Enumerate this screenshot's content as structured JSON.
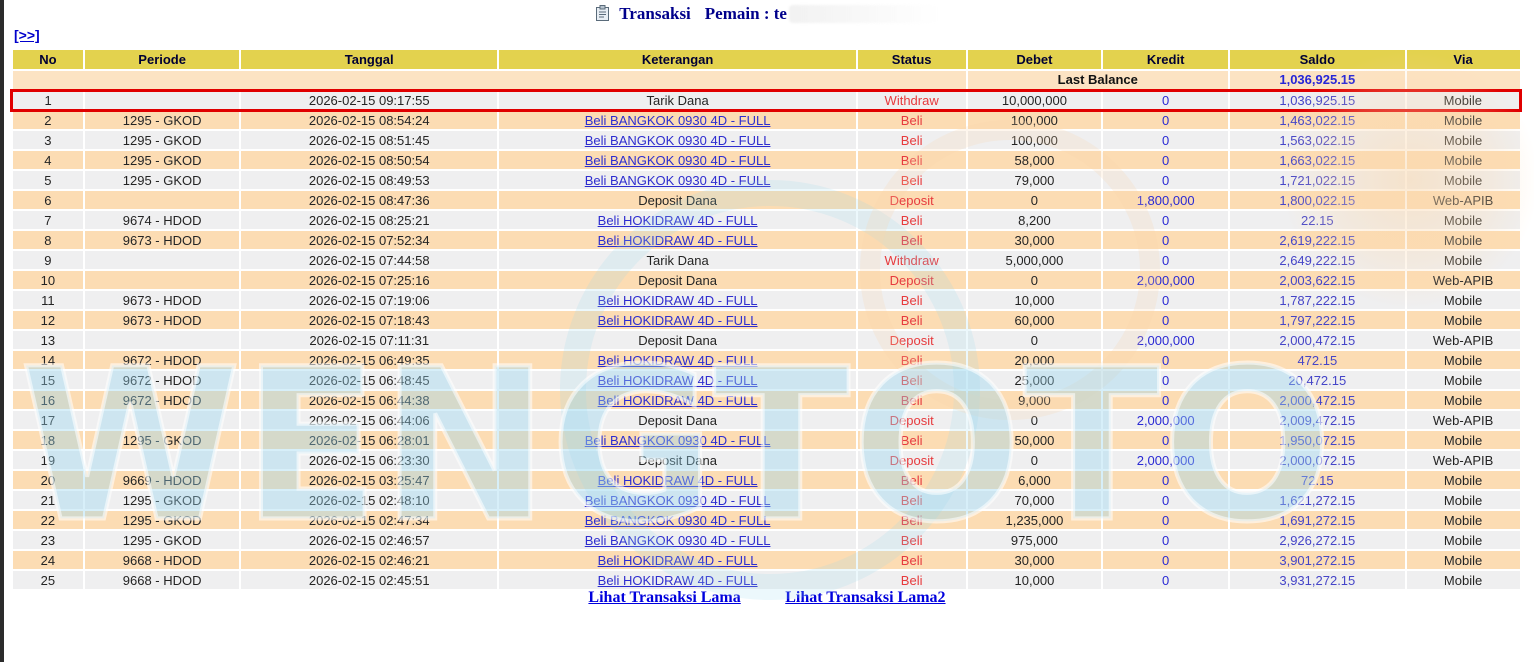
{
  "page": {
    "title_label": "Transaksi",
    "player_label": "Pemain : te",
    "more_link": "[>>]",
    "watermark_text": "WENGTOTO",
    "footer": {
      "link1": "Lihat Transaksi Lama",
      "link2": "Lihat Transaksi Lama2"
    }
  },
  "colors": {
    "header_bg": "#e3d24e",
    "header_text": "#000033",
    "row_gray": "#efeff0",
    "row_peach": "#fcdcb3",
    "last_balance_bg": "#fce3c3",
    "highlight_border": "#e00000",
    "status_red": "#e73a3d",
    "kredit_blue": "#2a2ad4",
    "saldo_blue": "#4545c8",
    "link_blue": "#2d2dd0",
    "title_navy": "#00008b",
    "footer_link_blue": "#0000dd",
    "watermark_blue": "#96d6ee",
    "watermark_peach": "#fad8ae"
  },
  "table": {
    "headers": [
      "No",
      "Periode",
      "Tanggal",
      "Keterangan",
      "Status",
      "Debet",
      "Kredit",
      "Saldo",
      "Via"
    ],
    "last_balance_label": "Last Balance",
    "last_balance_value": "1,036,925.15",
    "rows": [
      {
        "no": "1",
        "periode": "",
        "tanggal": "2026-02-15 09:17:55",
        "keterangan": "Tarik Dana",
        "link": false,
        "status": "Withdraw",
        "debet": "10,000,000",
        "kredit": "0",
        "saldo": "1,036,925.15",
        "via": "Mobile",
        "highlight": true
      },
      {
        "no": "2",
        "periode": "1295 - GKOD",
        "tanggal": "2026-02-15 08:54:24",
        "keterangan": "Beli BANGKOK 0930 4D - FULL",
        "link": true,
        "status": "Beli",
        "debet": "100,000",
        "kredit": "0",
        "saldo": "1,463,022.15",
        "via": "Mobile"
      },
      {
        "no": "3",
        "periode": "1295 - GKOD",
        "tanggal": "2026-02-15 08:51:45",
        "keterangan": "Beli BANGKOK 0930 4D - FULL",
        "link": true,
        "status": "Beli",
        "debet": "100,000",
        "kredit": "0",
        "saldo": "1,563,022.15",
        "via": "Mobile"
      },
      {
        "no": "4",
        "periode": "1295 - GKOD",
        "tanggal": "2026-02-15 08:50:54",
        "keterangan": "Beli BANGKOK 0930 4D - FULL",
        "link": true,
        "status": "Beli",
        "debet": "58,000",
        "kredit": "0",
        "saldo": "1,663,022.15",
        "via": "Mobile"
      },
      {
        "no": "5",
        "periode": "1295 - GKOD",
        "tanggal": "2026-02-15 08:49:53",
        "keterangan": "Beli BANGKOK 0930 4D - FULL",
        "link": true,
        "status": "Beli",
        "debet": "79,000",
        "kredit": "0",
        "saldo": "1,721,022.15",
        "via": "Mobile"
      },
      {
        "no": "6",
        "periode": "",
        "tanggal": "2026-02-15 08:47:36",
        "keterangan": "Deposit Dana",
        "link": false,
        "status": "Deposit",
        "debet": "0",
        "kredit": "1,800,000",
        "saldo": "1,800,022.15",
        "via": "Web-APIB"
      },
      {
        "no": "7",
        "periode": "9674 - HDOD",
        "tanggal": "2026-02-15 08:25:21",
        "keterangan": "Beli HOKIDRAW 4D - FULL",
        "link": true,
        "status": "Beli",
        "debet": "8,200",
        "kredit": "0",
        "saldo": "22.15",
        "via": "Mobile"
      },
      {
        "no": "8",
        "periode": "9673 - HDOD",
        "tanggal": "2026-02-15 07:52:34",
        "keterangan": "Beli HOKIDRAW 4D - FULL",
        "link": true,
        "status": "Beli",
        "debet": "30,000",
        "kredit": "0",
        "saldo": "2,619,222.15",
        "via": "Mobile"
      },
      {
        "no": "9",
        "periode": "",
        "tanggal": "2026-02-15 07:44:58",
        "keterangan": "Tarik Dana",
        "link": false,
        "status": "Withdraw",
        "debet": "5,000,000",
        "kredit": "0",
        "saldo": "2,649,222.15",
        "via": "Mobile"
      },
      {
        "no": "10",
        "periode": "",
        "tanggal": "2026-02-15 07:25:16",
        "keterangan": "Deposit Dana",
        "link": false,
        "status": "Deposit",
        "debet": "0",
        "kredit": "2,000,000",
        "saldo": "2,003,622.15",
        "via": "Web-APIB"
      },
      {
        "no": "11",
        "periode": "9673 - HDOD",
        "tanggal": "2026-02-15 07:19:06",
        "keterangan": "Beli HOKIDRAW 4D - FULL",
        "link": true,
        "status": "Beli",
        "debet": "10,000",
        "kredit": "0",
        "saldo": "1,787,222.15",
        "via": "Mobile"
      },
      {
        "no": "12",
        "periode": "9673 - HDOD",
        "tanggal": "2026-02-15 07:18:43",
        "keterangan": "Beli HOKIDRAW 4D - FULL",
        "link": true,
        "status": "Beli",
        "debet": "60,000",
        "kredit": "0",
        "saldo": "1,797,222.15",
        "via": "Mobile"
      },
      {
        "no": "13",
        "periode": "",
        "tanggal": "2026-02-15 07:11:31",
        "keterangan": "Deposit Dana",
        "link": false,
        "status": "Deposit",
        "debet": "0",
        "kredit": "2,000,000",
        "saldo": "2,000,472.15",
        "via": "Web-APIB"
      },
      {
        "no": "14",
        "periode": "9672 - HDOD",
        "tanggal": "2026-02-15 06:49:35",
        "keterangan": "Beli HOKIDRAW 4D - FULL",
        "link": true,
        "status": "Beli",
        "debet": "20,000",
        "kredit": "0",
        "saldo": "472.15",
        "via": "Mobile"
      },
      {
        "no": "15",
        "periode": "9672 - HDOD",
        "tanggal": "2026-02-15 06:48:45",
        "keterangan": "Beli HOKIDRAW 4D - FULL",
        "link": true,
        "status": "Beli",
        "debet": "25,000",
        "kredit": "0",
        "saldo": "20,472.15",
        "via": "Mobile"
      },
      {
        "no": "16",
        "periode": "9672 - HDOD",
        "tanggal": "2026-02-15 06:44:38",
        "keterangan": "Beli HOKIDRAW 4D - FULL",
        "link": true,
        "status": "Beli",
        "debet": "9,000",
        "kredit": "0",
        "saldo": "2,000,472.15",
        "via": "Mobile"
      },
      {
        "no": "17",
        "periode": "",
        "tanggal": "2026-02-15 06:44:06",
        "keterangan": "Deposit Dana",
        "link": false,
        "status": "Deposit",
        "debet": "0",
        "kredit": "2,000,000",
        "saldo": "2,009,472.15",
        "via": "Web-APIB"
      },
      {
        "no": "18",
        "periode": "1295 - GKOD",
        "tanggal": "2026-02-15 06:28:01",
        "keterangan": "Beli BANGKOK 0930 4D - FULL",
        "link": true,
        "status": "Beli",
        "debet": "50,000",
        "kredit": "0",
        "saldo": "1,950,072.15",
        "via": "Mobile"
      },
      {
        "no": "19",
        "periode": "",
        "tanggal": "2026-02-15 06:23:30",
        "keterangan": "Deposit Dana",
        "link": false,
        "status": "Deposit",
        "debet": "0",
        "kredit": "2,000,000",
        "saldo": "2,000,072.15",
        "via": "Web-APIB"
      },
      {
        "no": "20",
        "periode": "9669 - HDOD",
        "tanggal": "2026-02-15 03:25:47",
        "keterangan": "Beli HOKIDRAW 4D - FULL",
        "link": true,
        "status": "Beli",
        "debet": "6,000",
        "kredit": "0",
        "saldo": "72.15",
        "via": "Mobile"
      },
      {
        "no": "21",
        "periode": "1295 - GKOD",
        "tanggal": "2026-02-15 02:48:10",
        "keterangan": "Beli BANGKOK 0930 4D - FULL",
        "link": true,
        "status": "Beli",
        "debet": "70,000",
        "kredit": "0",
        "saldo": "1,621,272.15",
        "via": "Mobile"
      },
      {
        "no": "22",
        "periode": "1295 - GKOD",
        "tanggal": "2026-02-15 02:47:34",
        "keterangan": "Beli BANGKOK 0930 4D - FULL",
        "link": true,
        "status": "Beli",
        "debet": "1,235,000",
        "kredit": "0",
        "saldo": "1,691,272.15",
        "via": "Mobile"
      },
      {
        "no": "23",
        "periode": "1295 - GKOD",
        "tanggal": "2026-02-15 02:46:57",
        "keterangan": "Beli BANGKOK 0930 4D - FULL",
        "link": true,
        "status": "Beli",
        "debet": "975,000",
        "kredit": "0",
        "saldo": "2,926,272.15",
        "via": "Mobile"
      },
      {
        "no": "24",
        "periode": "9668 - HDOD",
        "tanggal": "2026-02-15 02:46:21",
        "keterangan": "Beli HOKIDRAW 4D - FULL",
        "link": true,
        "status": "Beli",
        "debet": "30,000",
        "kredit": "0",
        "saldo": "3,901,272.15",
        "via": "Mobile"
      },
      {
        "no": "25",
        "periode": "9668 - HDOD",
        "tanggal": "2026-02-15 02:45:51",
        "keterangan": "Beli HOKIDRAW 4D - FULL",
        "link": true,
        "status": "Beli",
        "debet": "10,000",
        "kredit": "0",
        "saldo": "3,931,272.15",
        "via": "Mobile"
      }
    ]
  }
}
